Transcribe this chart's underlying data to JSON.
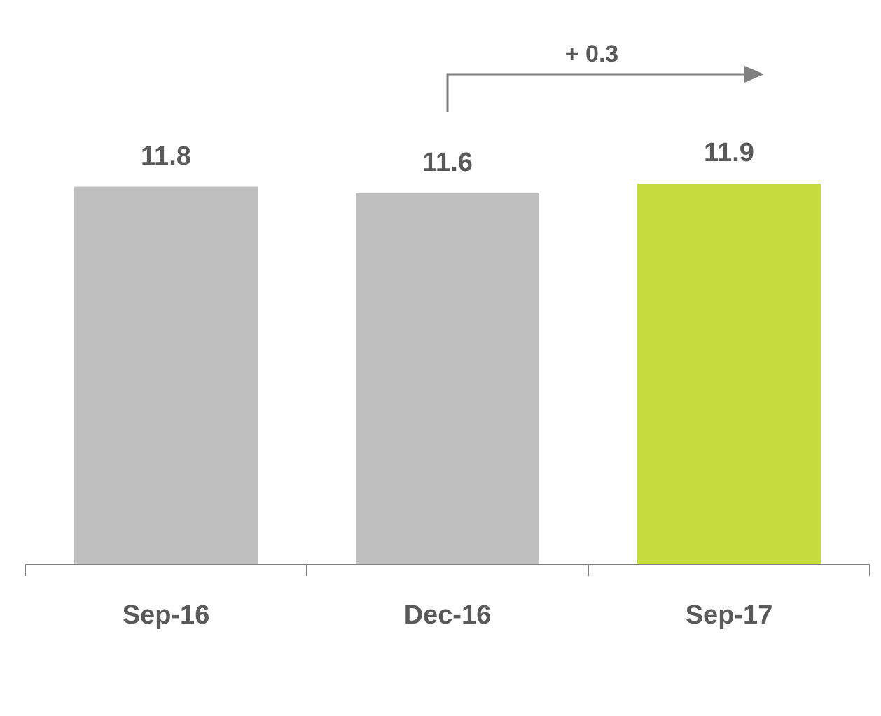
{
  "chart_data": {
    "type": "bar",
    "categories": [
      "Sep-16",
      "Dec-16",
      "Sep-17"
    ],
    "values": [
      11.8,
      11.6,
      11.9
    ],
    "colors": [
      "#bfbfbf",
      "#bfbfbf",
      "#c5dd3f"
    ],
    "data_labels": true,
    "annotations": [
      "+ 0.3"
    ]
  }
}
